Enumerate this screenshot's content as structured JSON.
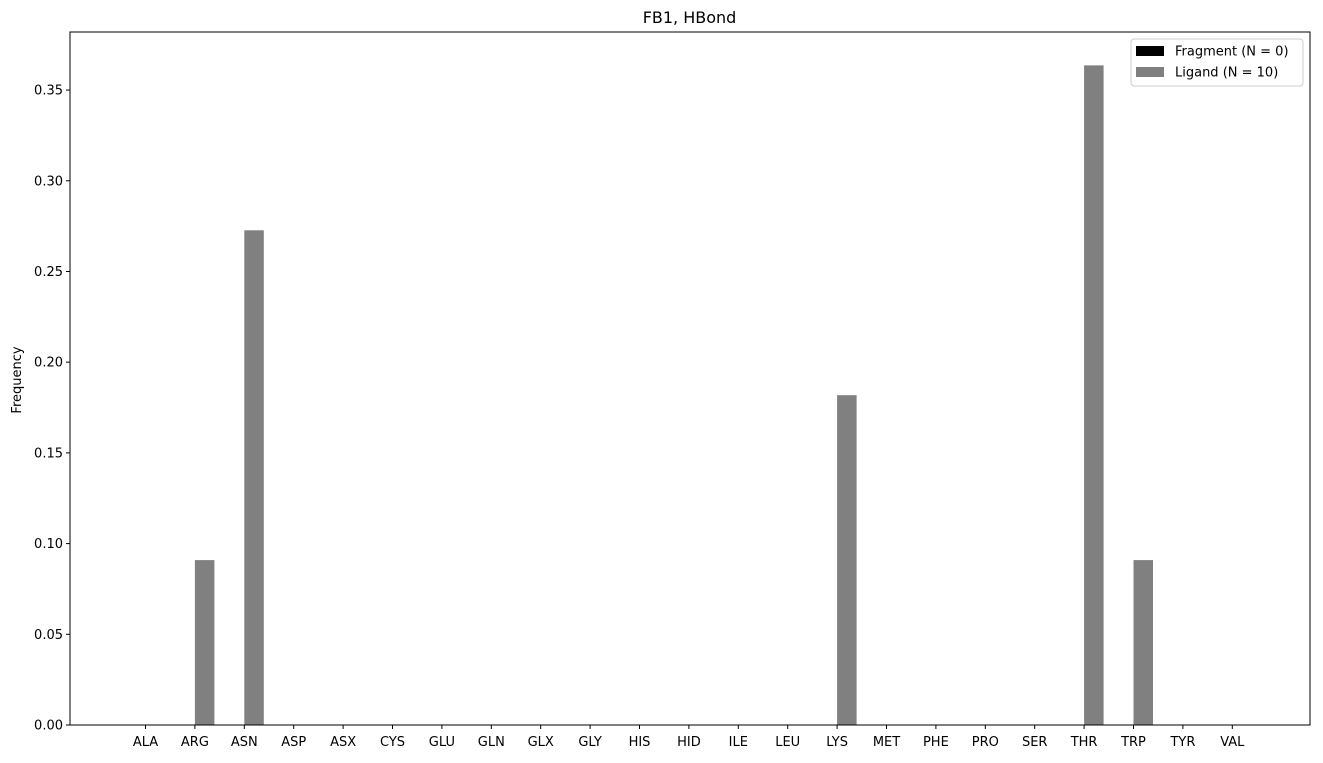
{
  "chart_data": {
    "type": "bar",
    "title": "FB1, HBond",
    "xlabel": "",
    "ylabel": "Frequency",
    "ylim": [
      0,
      0.382
    ],
    "yticks": [
      0.0,
      0.05,
      0.1,
      0.15,
      0.2,
      0.25,
      0.3,
      0.35
    ],
    "ytick_labels": [
      "0.00",
      "0.05",
      "0.10",
      "0.15",
      "0.20",
      "0.25",
      "0.30",
      "0.35"
    ],
    "categories": [
      "ALA",
      "ARG",
      "ASN",
      "ASP",
      "ASX",
      "CYS",
      "GLU",
      "GLN",
      "GLX",
      "GLY",
      "HIS",
      "HID",
      "ILE",
      "LEU",
      "LYS",
      "MET",
      "PHE",
      "PRO",
      "SER",
      "THR",
      "TRP",
      "TYR",
      "VAL"
    ],
    "series": [
      {
        "name": "Fragment (N = 0)",
        "color": "#000000",
        "values": [
          0,
          0,
          0,
          0,
          0,
          0,
          0,
          0,
          0,
          0,
          0,
          0,
          0,
          0,
          0,
          0,
          0,
          0,
          0,
          0,
          0,
          0,
          0
        ]
      },
      {
        "name": "Ligand (N = 10)",
        "color": "#808080",
        "values": [
          0,
          0.0909,
          0.2727,
          0,
          0,
          0,
          0,
          0,
          0,
          0,
          0,
          0,
          0,
          0,
          0.1818,
          0,
          0,
          0,
          0,
          0.3636,
          0.0909,
          0,
          0
        ]
      }
    ],
    "legend_position": "top-right",
    "grid": false
  }
}
